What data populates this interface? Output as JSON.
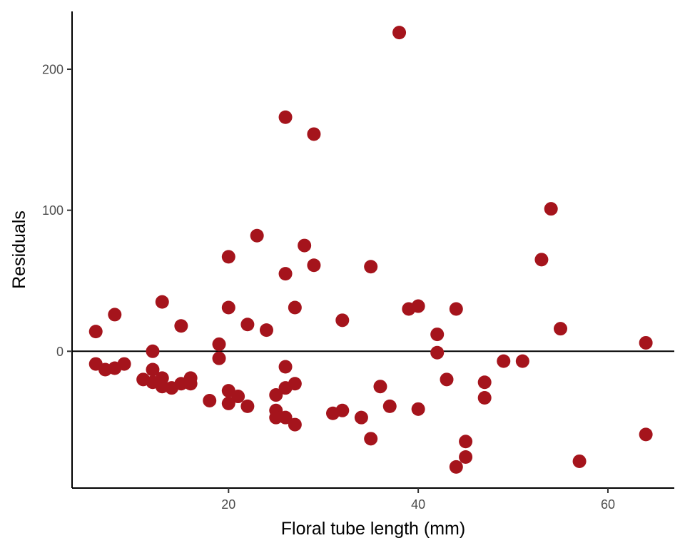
{
  "chart_data": {
    "type": "scatter",
    "xlabel": "Floral tube length (mm)",
    "ylabel": "Residuals",
    "xlim": [
      3.5,
      67
    ],
    "ylim": [
      -97,
      241
    ],
    "x_ticks": [
      20,
      40,
      60
    ],
    "y_ticks": [
      0,
      100,
      200
    ],
    "reference_line_y": 0,
    "grid": false,
    "point_color": "#a5141c",
    "points": [
      {
        "x": 6,
        "y": 14
      },
      {
        "x": 6,
        "y": -9
      },
      {
        "x": 7,
        "y": -13
      },
      {
        "x": 8,
        "y": 26
      },
      {
        "x": 8,
        "y": -12
      },
      {
        "x": 9,
        "y": -9
      },
      {
        "x": 11,
        "y": -20
      },
      {
        "x": 12,
        "y": 0
      },
      {
        "x": 12,
        "y": -13
      },
      {
        "x": 12,
        "y": -22
      },
      {
        "x": 13,
        "y": 35
      },
      {
        "x": 13,
        "y": -19
      },
      {
        "x": 13,
        "y": -25
      },
      {
        "x": 14,
        "y": -26
      },
      {
        "x": 15,
        "y": 18
      },
      {
        "x": 15,
        "y": -23
      },
      {
        "x": 16,
        "y": -19
      },
      {
        "x": 16,
        "y": -23
      },
      {
        "x": 18,
        "y": -35
      },
      {
        "x": 19,
        "y": 5
      },
      {
        "x": 19,
        "y": -5
      },
      {
        "x": 20,
        "y": 67
      },
      {
        "x": 20,
        "y": 31
      },
      {
        "x": 20,
        "y": -28
      },
      {
        "x": 20,
        "y": -37
      },
      {
        "x": 21,
        "y": -32
      },
      {
        "x": 22,
        "y": 19
      },
      {
        "x": 22,
        "y": -39
      },
      {
        "x": 23,
        "y": 82
      },
      {
        "x": 24,
        "y": 15
      },
      {
        "x": 25,
        "y": -31
      },
      {
        "x": 25,
        "y": -42
      },
      {
        "x": 25,
        "y": -47
      },
      {
        "x": 26,
        "y": 166
      },
      {
        "x": 26,
        "y": 55
      },
      {
        "x": 26,
        "y": -11
      },
      {
        "x": 26,
        "y": -26
      },
      {
        "x": 26,
        "y": -47
      },
      {
        "x": 27,
        "y": 31
      },
      {
        "x": 27,
        "y": -23
      },
      {
        "x": 27,
        "y": -52
      },
      {
        "x": 28,
        "y": 75
      },
      {
        "x": 29,
        "y": 154
      },
      {
        "x": 29,
        "y": 61
      },
      {
        "x": 31,
        "y": -44
      },
      {
        "x": 32,
        "y": 22
      },
      {
        "x": 32,
        "y": -42
      },
      {
        "x": 34,
        "y": -47
      },
      {
        "x": 35,
        "y": 60
      },
      {
        "x": 35,
        "y": -62
      },
      {
        "x": 36,
        "y": -25
      },
      {
        "x": 37,
        "y": -39
      },
      {
        "x": 38,
        "y": 226
      },
      {
        "x": 39,
        "y": 30
      },
      {
        "x": 40,
        "y": 32
      },
      {
        "x": 40,
        "y": -41
      },
      {
        "x": 42,
        "y": 12
      },
      {
        "x": 42,
        "y": -1
      },
      {
        "x": 43,
        "y": -20
      },
      {
        "x": 44,
        "y": 30
      },
      {
        "x": 44,
        "y": -82
      },
      {
        "x": 45,
        "y": -64
      },
      {
        "x": 45,
        "y": -75
      },
      {
        "x": 47,
        "y": -22
      },
      {
        "x": 47,
        "y": -33
      },
      {
        "x": 49,
        "y": -7
      },
      {
        "x": 51,
        "y": -7
      },
      {
        "x": 53,
        "y": 65
      },
      {
        "x": 54,
        "y": 101
      },
      {
        "x": 55,
        "y": 16
      },
      {
        "x": 57,
        "y": -78
      },
      {
        "x": 64,
        "y": 6
      },
      {
        "x": 64,
        "y": -59
      }
    ]
  }
}
